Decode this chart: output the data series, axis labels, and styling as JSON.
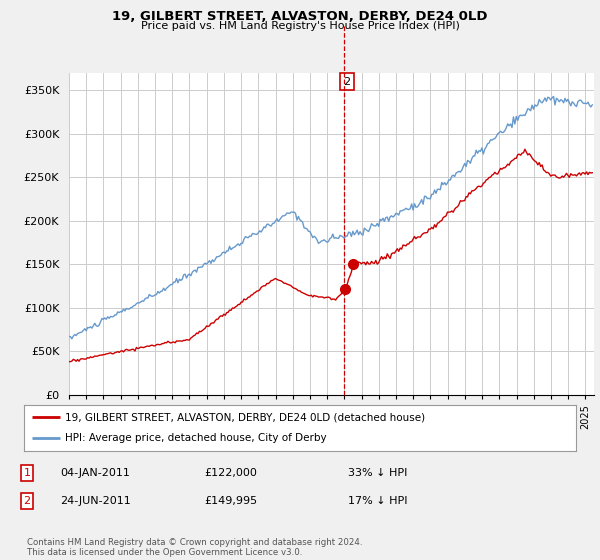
{
  "title": "19, GILBERT STREET, ALVASTON, DERBY, DE24 0LD",
  "subtitle": "Price paid vs. HM Land Registry's House Price Index (HPI)",
  "ylabel_ticks": [
    "£0",
    "£50K",
    "£100K",
    "£150K",
    "£200K",
    "£250K",
    "£300K",
    "£350K"
  ],
  "ytick_values": [
    0,
    50000,
    100000,
    150000,
    200000,
    250000,
    300000,
    350000
  ],
  "ylim": [
    0,
    370000
  ],
  "xlim_start": 1995.0,
  "xlim_end": 2025.5,
  "vline_x": 2011.0,
  "point1_x": 2011.04,
  "point1_y": 122000,
  "point1_label": "1",
  "point2_x": 2011.48,
  "point2_y": 149995,
  "point2_label": "2",
  "line1_color": "#cc0000",
  "line2_color": "#6699cc",
  "vline_color": "#cc0000",
  "legend_line1": "19, GILBERT STREET, ALVASTON, DERBY, DE24 0LD (detached house)",
  "legend_line2": "HPI: Average price, detached house, City of Derby",
  "table_row1": [
    "1",
    "04-JAN-2011",
    "£122,000",
    "33% ↓ HPI"
  ],
  "table_row2": [
    "2",
    "24-JUN-2011",
    "£149,995",
    "17% ↓ HPI"
  ],
  "footer": "Contains HM Land Registry data © Crown copyright and database right 2024.\nThis data is licensed under the Open Government Licence v3.0.",
  "background_color": "#f0f0f0",
  "plot_bg_color": "#ffffff",
  "grid_color": "#cccccc"
}
